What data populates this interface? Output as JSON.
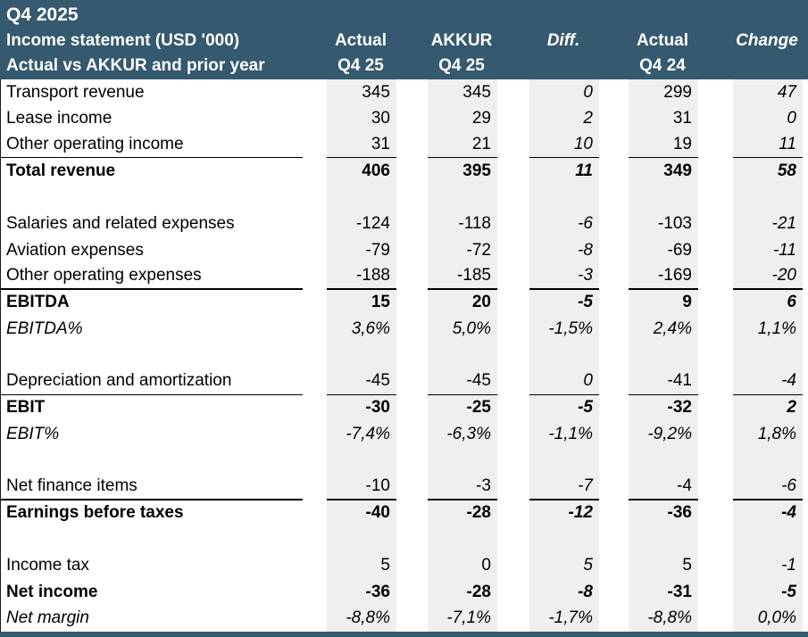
{
  "colors": {
    "header_bg": "#35596E",
    "bottom_bar": "#35596E",
    "column_band_bg": "#EFEFEF",
    "rule_color": "#000000",
    "header_text": "#FFFFFF",
    "body_text": "#000000"
  },
  "header": {
    "title": "Q4 2025",
    "line2": "Income statement (USD '000)",
    "line3": "Actual vs AKKUR and prior year",
    "columns": [
      {
        "line1": "Actual",
        "line2": "Q4 25",
        "italic": false
      },
      {
        "line1": "AKKUR",
        "line2": "Q4 25",
        "italic": false
      },
      {
        "line1": "Diff.",
        "line2": "",
        "italic": true
      },
      {
        "line1": "Actual",
        "line2": "Q4 24",
        "italic": false
      },
      {
        "line1": "Change",
        "line2": "",
        "italic": true
      }
    ]
  },
  "table": {
    "rows": [
      {
        "label": "Transport revenue",
        "values": [
          "345",
          "345",
          "0",
          "299",
          "47"
        ]
      },
      {
        "label": "Lease income",
        "values": [
          "30",
          "29",
          "2",
          "31",
          "0"
        ]
      },
      {
        "label": "Other operating income",
        "values": [
          "31",
          "21",
          "10",
          "19",
          "11"
        ],
        "rule": "thin"
      },
      {
        "label": "Total revenue",
        "values": [
          "406",
          "395",
          "11",
          "349",
          "58"
        ],
        "bold": true
      },
      {
        "blank": true
      },
      {
        "label": "Salaries and related expenses",
        "values": [
          "-124",
          "-118",
          "-6",
          "-103",
          "-21"
        ]
      },
      {
        "label": "Aviation expenses",
        "values": [
          "-79",
          "-72",
          "-8",
          "-69",
          "-11"
        ]
      },
      {
        "label": "Other operating expenses",
        "values": [
          "-188",
          "-185",
          "-3",
          "-169",
          "-20"
        ],
        "rule": "thick"
      },
      {
        "label": "EBITDA",
        "values": [
          "15",
          "20",
          "-5",
          "9",
          "6"
        ],
        "bold": true
      },
      {
        "label": "EBITDA%",
        "values": [
          "3,6%",
          "5,0%",
          "-1,5%",
          "2,4%",
          "1,1%"
        ],
        "italic": true
      },
      {
        "blank": true
      },
      {
        "label": "Depreciation and amortization",
        "values": [
          "-45",
          "-45",
          "0",
          "-41",
          "-4"
        ],
        "rule": "thin"
      },
      {
        "label": "EBIT",
        "values": [
          "-30",
          "-25",
          "-5",
          "-32",
          "2"
        ],
        "bold": true
      },
      {
        "label": "EBIT%",
        "values": [
          "-7,4%",
          "-6,3%",
          "-1,1%",
          "-9,2%",
          "1,8%"
        ],
        "italic": true
      },
      {
        "blank": true
      },
      {
        "label": "Net finance items",
        "values": [
          "-10",
          "-3",
          "-7",
          "-4",
          "-6"
        ],
        "rule": "thick"
      },
      {
        "label": "Earnings before taxes",
        "values": [
          "-40",
          "-28",
          "-12",
          "-36",
          "-4"
        ],
        "bold": true
      },
      {
        "blank": true
      },
      {
        "label": "Income tax",
        "values": [
          "5",
          "0",
          "5",
          "5",
          "-1"
        ]
      },
      {
        "label": "Net income",
        "values": [
          "-36",
          "-28",
          "-8",
          "-31",
          "-5"
        ],
        "bold": true
      },
      {
        "label": "Net margin",
        "values": [
          "-8,8%",
          "-7,1%",
          "-1,7%",
          "-8,8%",
          "0,0%"
        ],
        "italic": true
      }
    ]
  }
}
